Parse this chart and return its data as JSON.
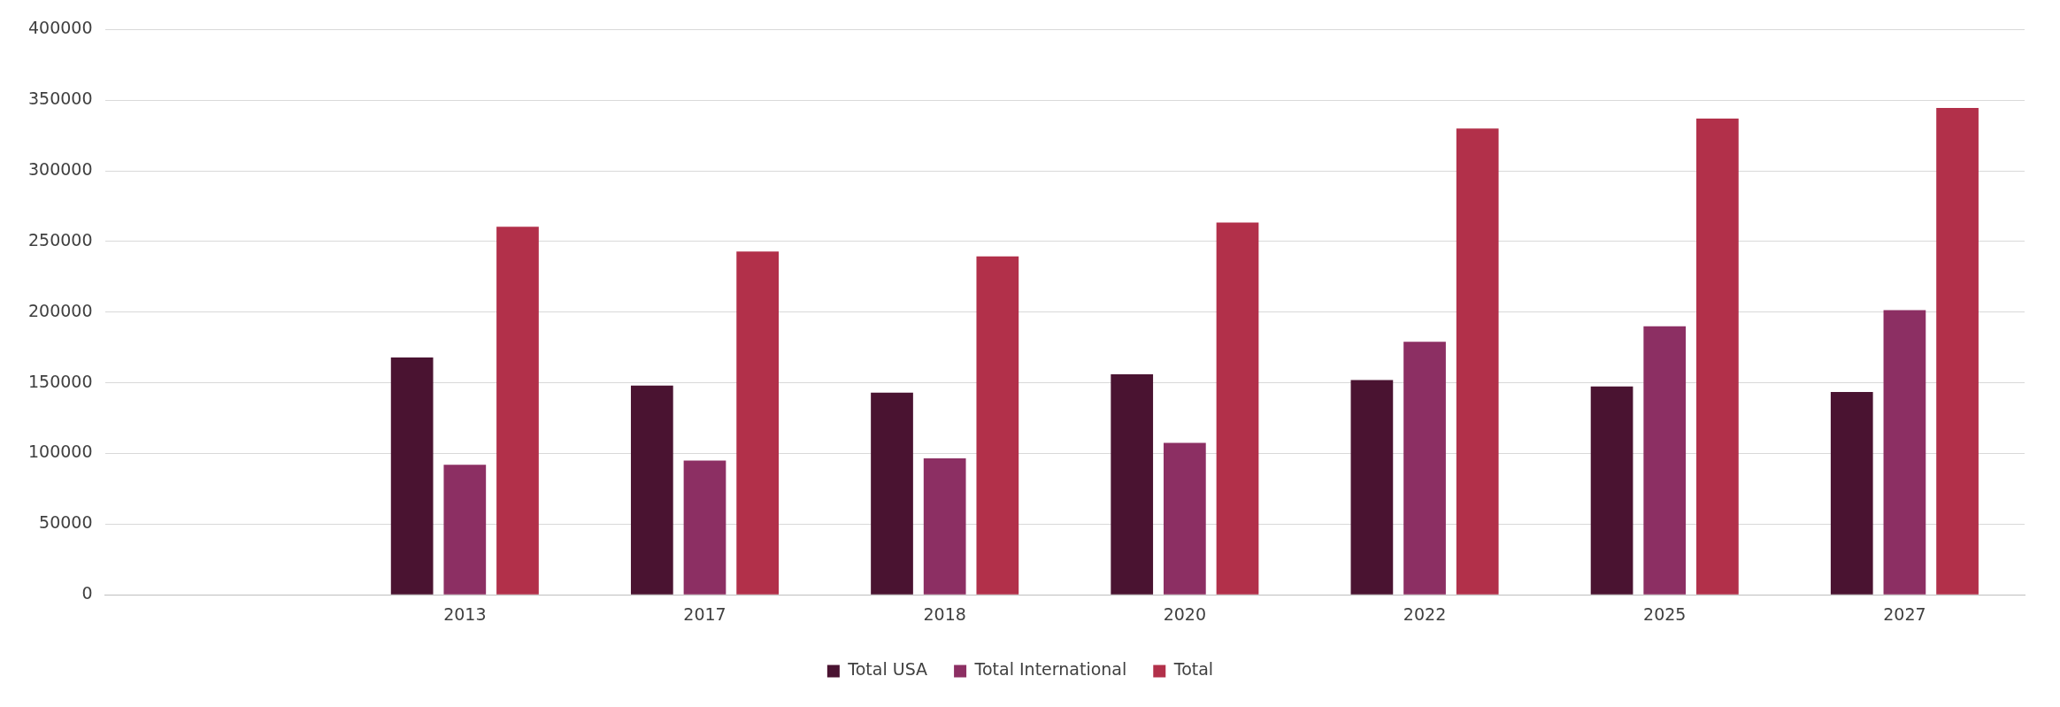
{
  "chart_data": {
    "type": "bar",
    "categories": [
      null,
      "2013",
      "2017",
      "2018",
      "2020",
      "2022",
      "2025",
      "2027"
    ],
    "series": [
      {
        "name": "Total USA",
        "color": "#4a1331",
        "values": [
          null,
          168000,
          148000,
          143000,
          156000,
          152000,
          147500,
          143500
        ]
      },
      {
        "name": "Total International",
        "color": "#8c2f63",
        "values": [
          null,
          92000,
          95000,
          96500,
          107500,
          179000,
          190000,
          201500
        ]
      },
      {
        "name": "Total",
        "color": "#b2304a",
        "values": [
          null,
          260500,
          243000,
          239500,
          263500,
          330000,
          337000,
          344500
        ]
      }
    ],
    "ylim": [
      0,
      400000
    ],
    "yticks": [
      0,
      50000,
      100000,
      150000,
      200000,
      250000,
      300000,
      350000,
      400000
    ],
    "grid": "y",
    "legend": "bottom"
  }
}
